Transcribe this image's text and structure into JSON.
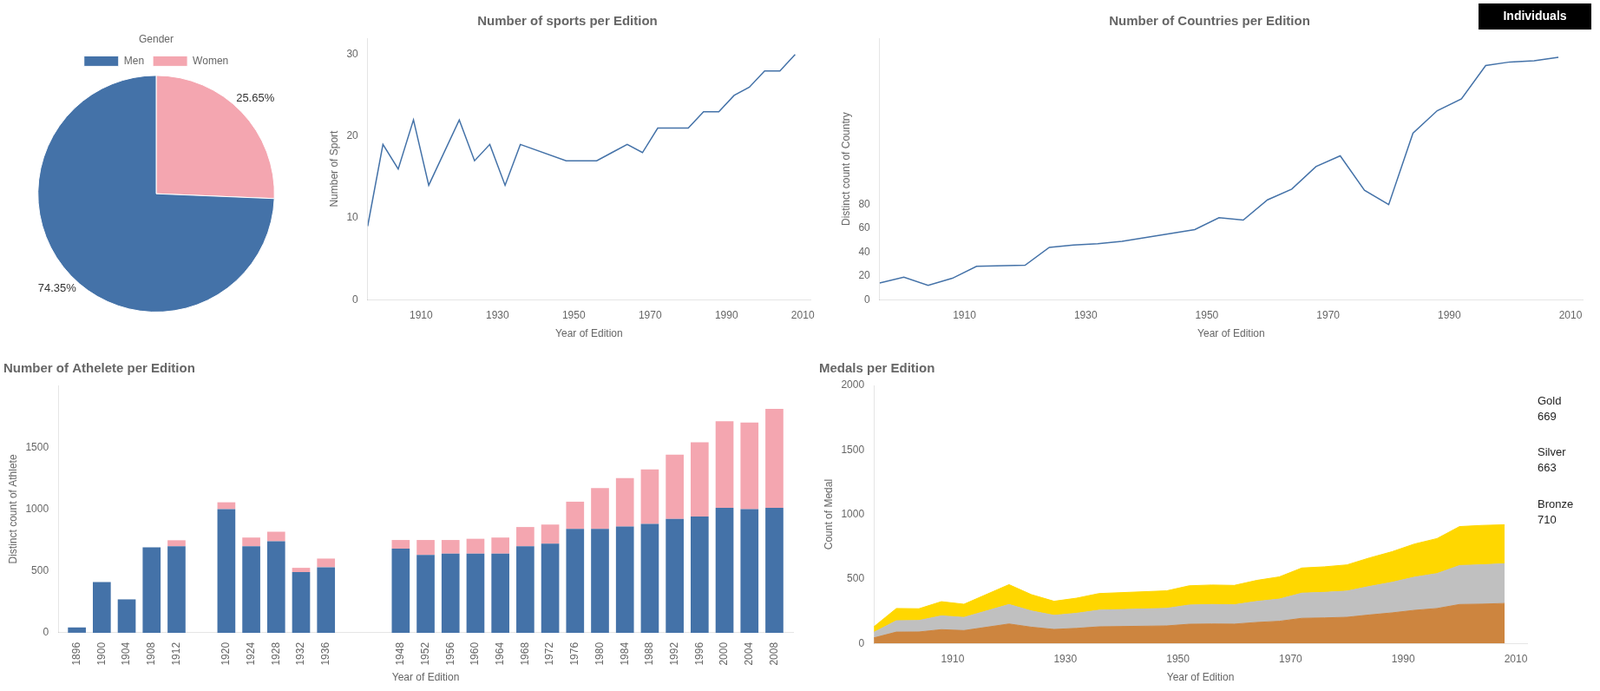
{
  "chart_data": [
    {
      "type": "pie",
      "categories": [
        "Women",
        "Men"
      ],
      "values": [
        25.65,
        74.35
      ],
      "colors": [
        "#f4a6b0",
        "#4472a8"
      ],
      "data_labels": true,
      "value_labels": [
        "25.65%",
        "74.35%"
      ],
      "legend": "top",
      "annotations": [
        "Gender"
      ]
    },
    {
      "type": "line",
      "title": "Number of sports per Edition",
      "x_label": "Year of Edition",
      "y_label": "Number of Sport",
      "x": [
        1896,
        1900,
        1904,
        1908,
        1912,
        1920,
        1924,
        1928,
        1932,
        1936,
        1948,
        1952,
        1956,
        1960,
        1964,
        1968,
        1972,
        1976,
        1980,
        1984,
        1988,
        1992,
        1996,
        2000,
        2004,
        2008
      ],
      "values": [
        9,
        19,
        16,
        22,
        14,
        22,
        17,
        19,
        14,
        19,
        17,
        17,
        17,
        18,
        19,
        18,
        21,
        21,
        21,
        23,
        23,
        25,
        26,
        28,
        28,
        30
      ],
      "color": "#4472a8",
      "xlim": [
        1896,
        2012
      ],
      "xticks": [
        1910,
        1930,
        1950,
        1970,
        1990,
        2010
      ],
      "ylim": [
        0,
        32
      ],
      "yticks": [
        0,
        10,
        20,
        30
      ],
      "grid": false
    },
    {
      "type": "line",
      "title": "Number of Countries per Edition",
      "x_label": "Year of Edition",
      "y_label": "Distinct count of Country",
      "x": [
        1896,
        1900,
        1904,
        1908,
        1912,
        1920,
        1924,
        1928,
        1932,
        1936,
        1948,
        1952,
        1956,
        1960,
        1964,
        1968,
        1972,
        1976,
        1980,
        1984,
        1988,
        1992,
        1996,
        2000,
        2004,
        2008
      ],
      "values": [
        14,
        19,
        12,
        18,
        28,
        29,
        44,
        46,
        47,
        49,
        59,
        69,
        67,
        84,
        93,
        112,
        121,
        92,
        80,
        140,
        159,
        169,
        197,
        200,
        201,
        204
      ],
      "color": "#4472a8",
      "xlim": [
        1896,
        2012
      ],
      "xticks": [
        1910,
        1930,
        1950,
        1970,
        1990,
        2010
      ],
      "ylim": [
        0,
        220
      ],
      "yticks": [
        0,
        20,
        40,
        60,
        80
      ],
      "grid": false,
      "annotations": [
        "Individuals"
      ]
    },
    {
      "type": "bar",
      "stacked": true,
      "title": "Number of Athelete per Edition",
      "x_label": "Year of Edition",
      "y_label": "Distinct count of Athlete",
      "x": [
        1896,
        1900,
        1904,
        1908,
        1912,
        1920,
        1924,
        1928,
        1932,
        1936,
        1948,
        1952,
        1956,
        1960,
        1964,
        1968,
        1972,
        1976,
        1980,
        1984,
        1988,
        1992,
        1996,
        2000,
        2004,
        2008
      ],
      "series": [
        {
          "name": "Men",
          "color": "#4472a8",
          "values": [
            43,
            410,
            270,
            690,
            700,
            1000,
            700,
            740,
            490,
            530,
            680,
            630,
            640,
            640,
            640,
            700,
            720,
            840,
            840,
            860,
            880,
            920,
            940,
            1010,
            1000,
            1010
          ]
        },
        {
          "name": "Women",
          "color": "#f4a6b0",
          "values": [
            0,
            0,
            0,
            0,
            48,
            55,
            70,
            77,
            35,
            70,
            70,
            120,
            110,
            120,
            130,
            155,
            155,
            220,
            330,
            390,
            440,
            520,
            600,
            700,
            700,
            800
          ]
        }
      ],
      "xlim": [
        1893,
        2011
      ],
      "xticks": [
        1896,
        1900,
        1904,
        1908,
        1912,
        1920,
        1924,
        1928,
        1932,
        1936,
        1948,
        1952,
        1956,
        1960,
        1964,
        1968,
        1972,
        1976,
        1980,
        1984,
        1988,
        1992,
        1996,
        2000,
        2004,
        2008
      ],
      "ylim": [
        0,
        2000
      ],
      "yticks": [
        0,
        500,
        1000,
        1500
      ],
      "grid": false
    },
    {
      "type": "area",
      "stacked": true,
      "title": "Medals per Edition",
      "x_label": "Year of Edition",
      "y_label": "Count of Medal",
      "x": [
        1896,
        1900,
        1904,
        1908,
        1912,
        1920,
        1924,
        1928,
        1932,
        1936,
        1948,
        1952,
        1956,
        1960,
        1964,
        1968,
        1972,
        1976,
        1980,
        1984,
        1988,
        1992,
        1996,
        2000,
        2004,
        2008
      ],
      "series": [
        {
          "name": "Bronze",
          "color": "#CD853F",
          "values": [
            43,
            88,
            89,
            107,
            100,
            151,
            126,
            109,
            117,
            129,
            136,
            149,
            151,
            150,
            163,
            172,
            195,
            198,
            203,
            221,
            237,
            257,
            271,
            302,
            305,
            310
          ]
        },
        {
          "name": "Silver",
          "color": "#C0C0C0",
          "values": [
            43,
            88,
            89,
            107,
            102,
            151,
            126,
            109,
            117,
            129,
            136,
            149,
            151,
            150,
            163,
            172,
            195,
            198,
            203,
            221,
            237,
            257,
            271,
            302,
            305,
            308
          ]
        },
        {
          "name": "Gold",
          "color": "#FFD700",
          "values": [
            43,
            95,
            91,
            110,
            102,
            154,
            126,
            109,
            117,
            129,
            136,
            149,
            151,
            150,
            163,
            172,
            195,
            198,
            203,
            221,
            237,
            257,
            271,
            302,
            305,
            302
          ]
        }
      ],
      "xlim": [
        1896,
        2012
      ],
      "xticks": [
        1910,
        1930,
        1950,
        1970,
        1990,
        2010
      ],
      "ylim": [
        0,
        2000
      ],
      "yticks": [
        0,
        500,
        1000,
        1500,
        2000
      ],
      "grid": false,
      "annotations": [
        "Gold",
        "669",
        "Silver",
        "663",
        "Bronze",
        "710"
      ]
    }
  ]
}
